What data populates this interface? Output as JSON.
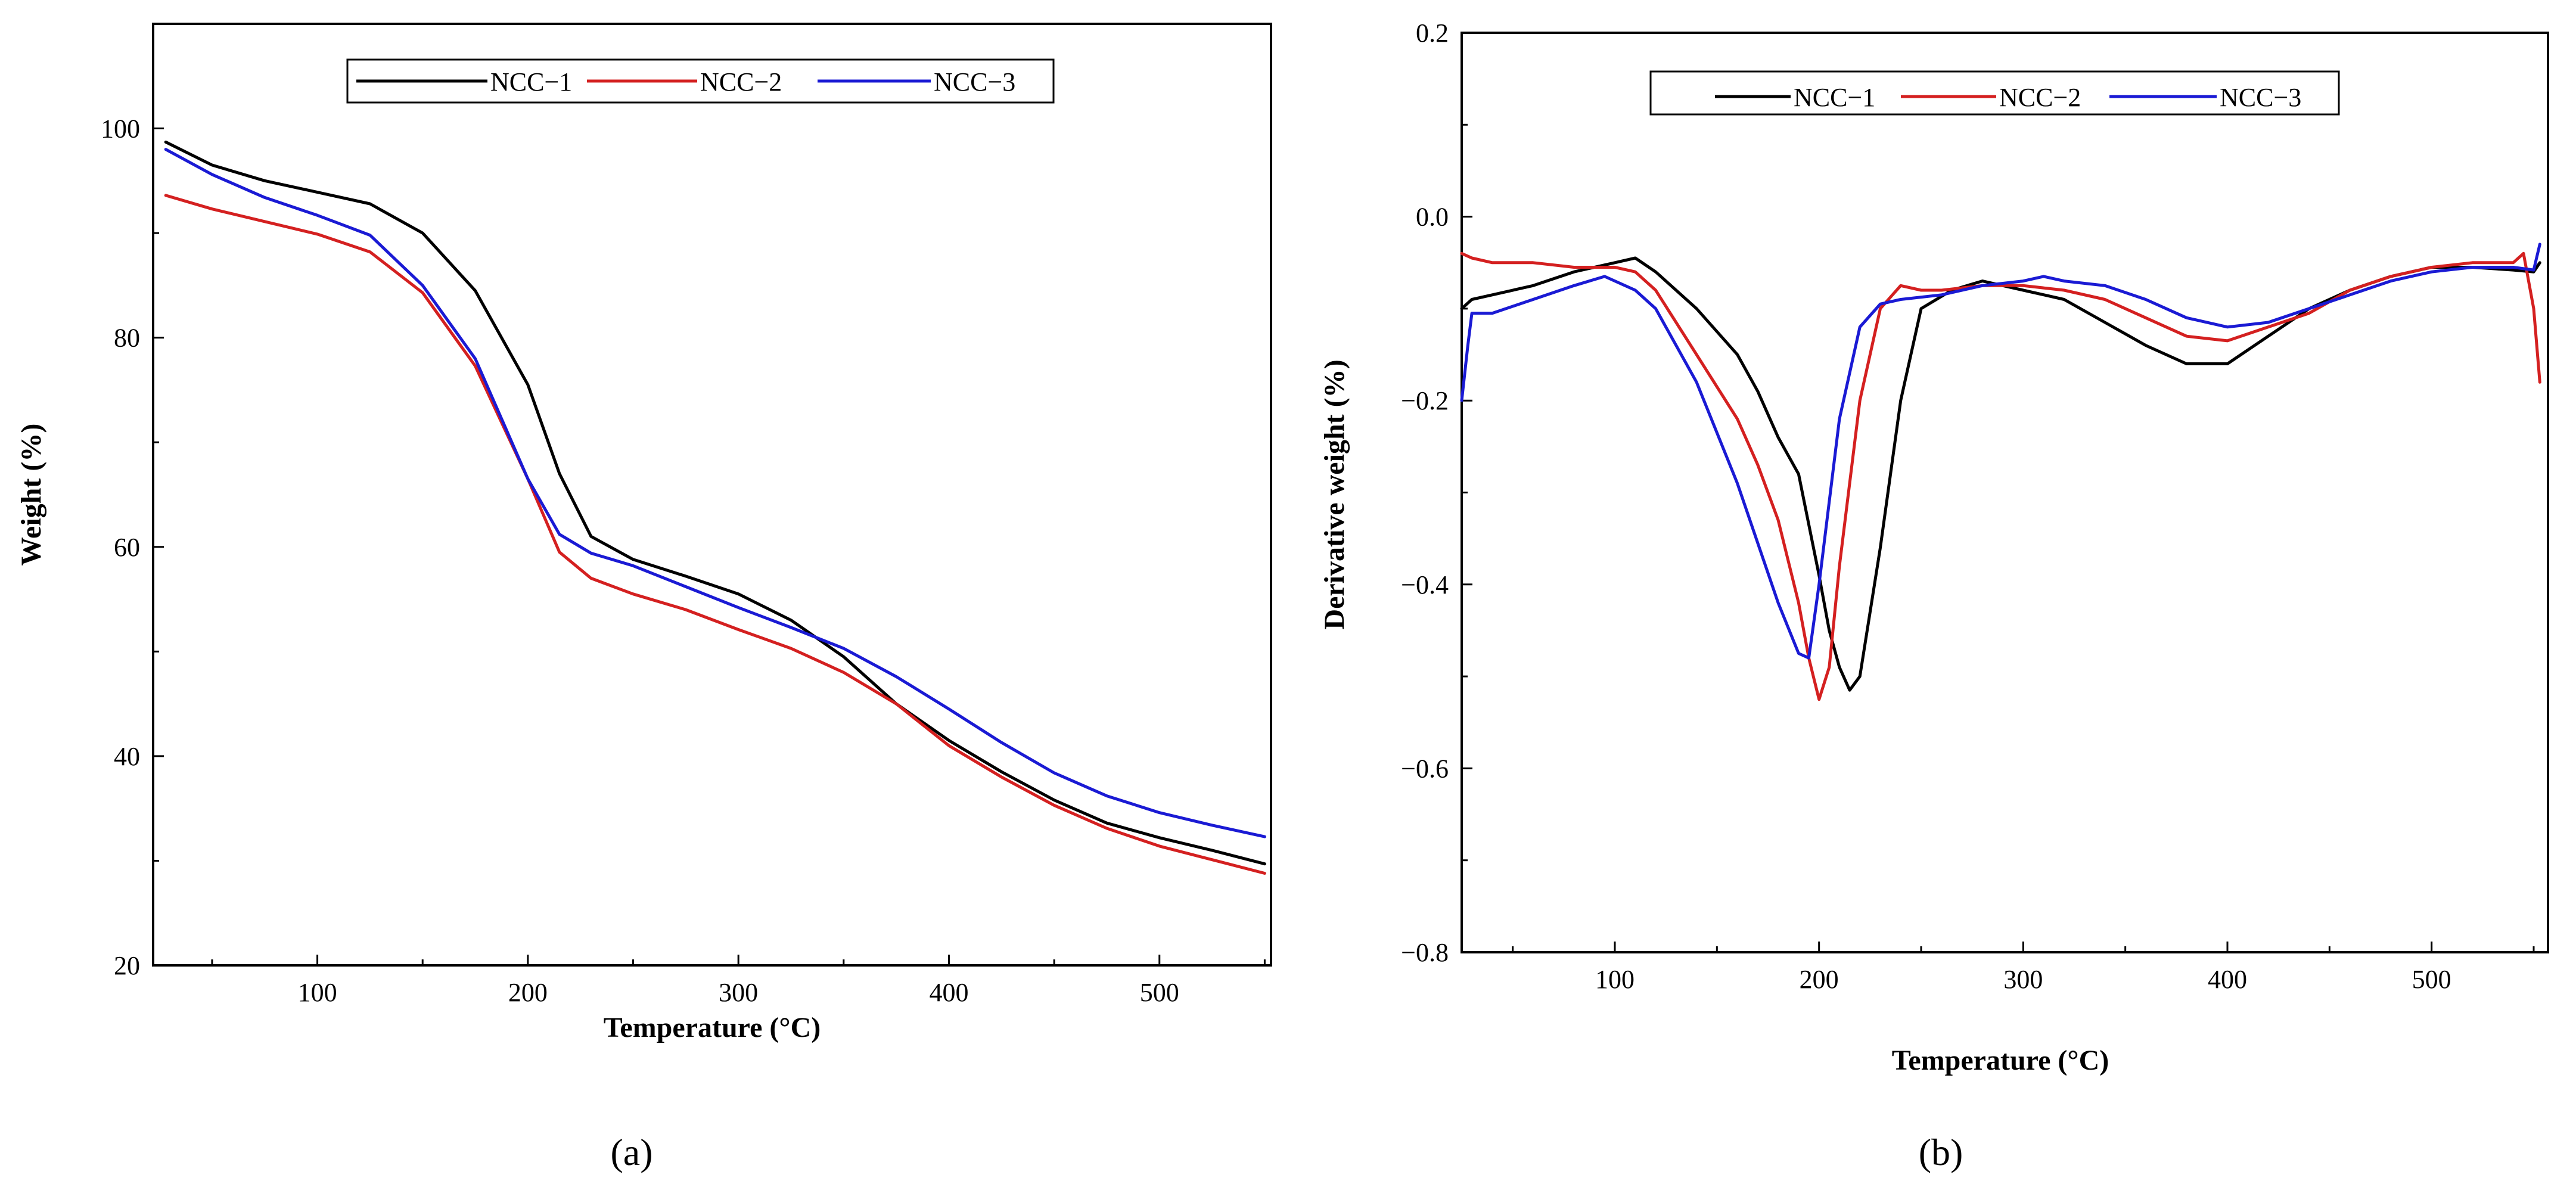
{
  "chart_data": [
    {
      "type": "line",
      "panel_label": "(a)",
      "xlabel": "Temperature (°C)",
      "ylabel": "Weight (%)",
      "xlim": [
        22,
        553
      ],
      "ylim": [
        20,
        110
      ],
      "xticks": [
        100,
        200,
        300,
        400,
        500
      ],
      "yticks": [
        20,
        40,
        60,
        80,
        100
      ],
      "legend": {
        "position": "top-center"
      },
      "series": [
        {
          "name": "NCC−1",
          "color": "#000000",
          "x": [
            28,
            50,
            75,
            100,
            125,
            150,
            175,
            200,
            215,
            230,
            250,
            275,
            300,
            325,
            350,
            375,
            400,
            425,
            450,
            475,
            500,
            525,
            550
          ],
          "y": [
            98.7,
            96.5,
            95,
            93.9,
            92.8,
            90,
            84.5,
            75.5,
            67,
            61,
            58.8,
            57.2,
            55.5,
            53,
            49.5,
            45,
            41.5,
            38.5,
            35.8,
            33.6,
            32.2,
            31,
            29.7
          ]
        },
        {
          "name": "NCC−2",
          "color": "#d42020",
          "x": [
            28,
            50,
            75,
            100,
            125,
            150,
            175,
            200,
            215,
            230,
            250,
            275,
            300,
            325,
            350,
            375,
            400,
            425,
            450,
            475,
            500,
            525,
            550
          ],
          "y": [
            93.6,
            92.3,
            91.1,
            89.9,
            88.2,
            84.3,
            77.3,
            66.5,
            59.5,
            57,
            55.5,
            54,
            52.1,
            50.3,
            48,
            45,
            41,
            38,
            35.3,
            33.1,
            31.4,
            30.1,
            28.8
          ]
        },
        {
          "name": "NCC−3",
          "color": "#1a1ad4",
          "x": [
            28,
            50,
            75,
            100,
            125,
            150,
            175,
            200,
            215,
            230,
            250,
            275,
            300,
            325,
            350,
            375,
            400,
            425,
            450,
            475,
            500,
            525,
            550
          ],
          "y": [
            98,
            95.6,
            93.4,
            91.7,
            89.8,
            85,
            78,
            66.5,
            61.2,
            59.4,
            58.2,
            56.2,
            54.2,
            52.3,
            50.3,
            47.6,
            44.5,
            41.3,
            38.4,
            36.2,
            34.6,
            33.4,
            32.3
          ]
        }
      ]
    },
    {
      "type": "line",
      "panel_label": "(b)",
      "xlabel": "Temperature (°C)",
      "ylabel": "Derivative weight (%)",
      "xlim": [
        25,
        557
      ],
      "ylim": [
        -0.8,
        0.2
      ],
      "xticks": [
        100,
        200,
        300,
        400,
        500
      ],
      "yticks": [
        -0.8,
        -0.6,
        -0.4,
        -0.2,
        0.0,
        0.2
      ],
      "ytick_labels": [
        "−0.8",
        "−0.6",
        "−0.4",
        "−0.2",
        "0.0",
        "0.2"
      ],
      "legend": {
        "position": "top-center"
      },
      "series": [
        {
          "name": "NCC−1",
          "color": "#000000",
          "x": [
            25,
            30,
            40,
            60,
            80,
            100,
            110,
            120,
            140,
            160,
            170,
            180,
            190,
            200,
            205,
            210,
            215,
            220,
            230,
            240,
            250,
            265,
            280,
            300,
            320,
            340,
            360,
            380,
            400,
            420,
            440,
            460,
            480,
            500,
            520,
            540,
            550,
            553
          ],
          "y": [
            -0.1,
            -0.09,
            -0.085,
            -0.075,
            -0.06,
            -0.05,
            -0.045,
            -0.06,
            -0.1,
            -0.15,
            -0.19,
            -0.24,
            -0.28,
            -0.39,
            -0.45,
            -0.49,
            -0.515,
            -0.5,
            -0.36,
            -0.2,
            -0.1,
            -0.08,
            -0.07,
            -0.08,
            -0.09,
            -0.115,
            -0.14,
            -0.16,
            -0.16,
            -0.13,
            -0.1,
            -0.08,
            -0.065,
            -0.055,
            -0.055,
            -0.058,
            -0.06,
            -0.05
          ]
        },
        {
          "name": "NCC−2",
          "color": "#d42020",
          "x": [
            25,
            30,
            40,
            60,
            80,
            100,
            110,
            120,
            140,
            160,
            170,
            180,
            190,
            195,
            200,
            205,
            210,
            220,
            230,
            240,
            250,
            260,
            280,
            300,
            320,
            340,
            360,
            380,
            400,
            420,
            440,
            460,
            480,
            500,
            520,
            540,
            545,
            550,
            553
          ],
          "y": [
            -0.04,
            -0.045,
            -0.05,
            -0.05,
            -0.055,
            -0.055,
            -0.06,
            -0.08,
            -0.15,
            -0.22,
            -0.27,
            -0.33,
            -0.42,
            -0.48,
            -0.525,
            -0.49,
            -0.38,
            -0.2,
            -0.1,
            -0.075,
            -0.08,
            -0.08,
            -0.075,
            -0.075,
            -0.08,
            -0.09,
            -0.11,
            -0.13,
            -0.135,
            -0.12,
            -0.105,
            -0.08,
            -0.065,
            -0.055,
            -0.05,
            -0.05,
            -0.04,
            -0.1,
            -0.18
          ]
        },
        {
          "name": "NCC−3",
          "color": "#1a1ad4",
          "x": [
            25,
            28,
            30,
            40,
            60,
            80,
            95,
            110,
            120,
            140,
            160,
            180,
            190,
            195,
            200,
            210,
            220,
            230,
            240,
            260,
            280,
            300,
            310,
            320,
            340,
            360,
            380,
            400,
            420,
            440,
            460,
            480,
            500,
            520,
            540,
            550,
            553
          ],
          "y": [
            -0.2,
            -0.14,
            -0.105,
            -0.105,
            -0.09,
            -0.075,
            -0.065,
            -0.08,
            -0.1,
            -0.18,
            -0.29,
            -0.42,
            -0.475,
            -0.48,
            -0.4,
            -0.22,
            -0.12,
            -0.095,
            -0.09,
            -0.085,
            -0.075,
            -0.07,
            -0.065,
            -0.07,
            -0.075,
            -0.09,
            -0.11,
            -0.12,
            -0.115,
            -0.1,
            -0.085,
            -0.07,
            -0.06,
            -0.055,
            -0.055,
            -0.058,
            -0.03
          ]
        }
      ]
    }
  ]
}
